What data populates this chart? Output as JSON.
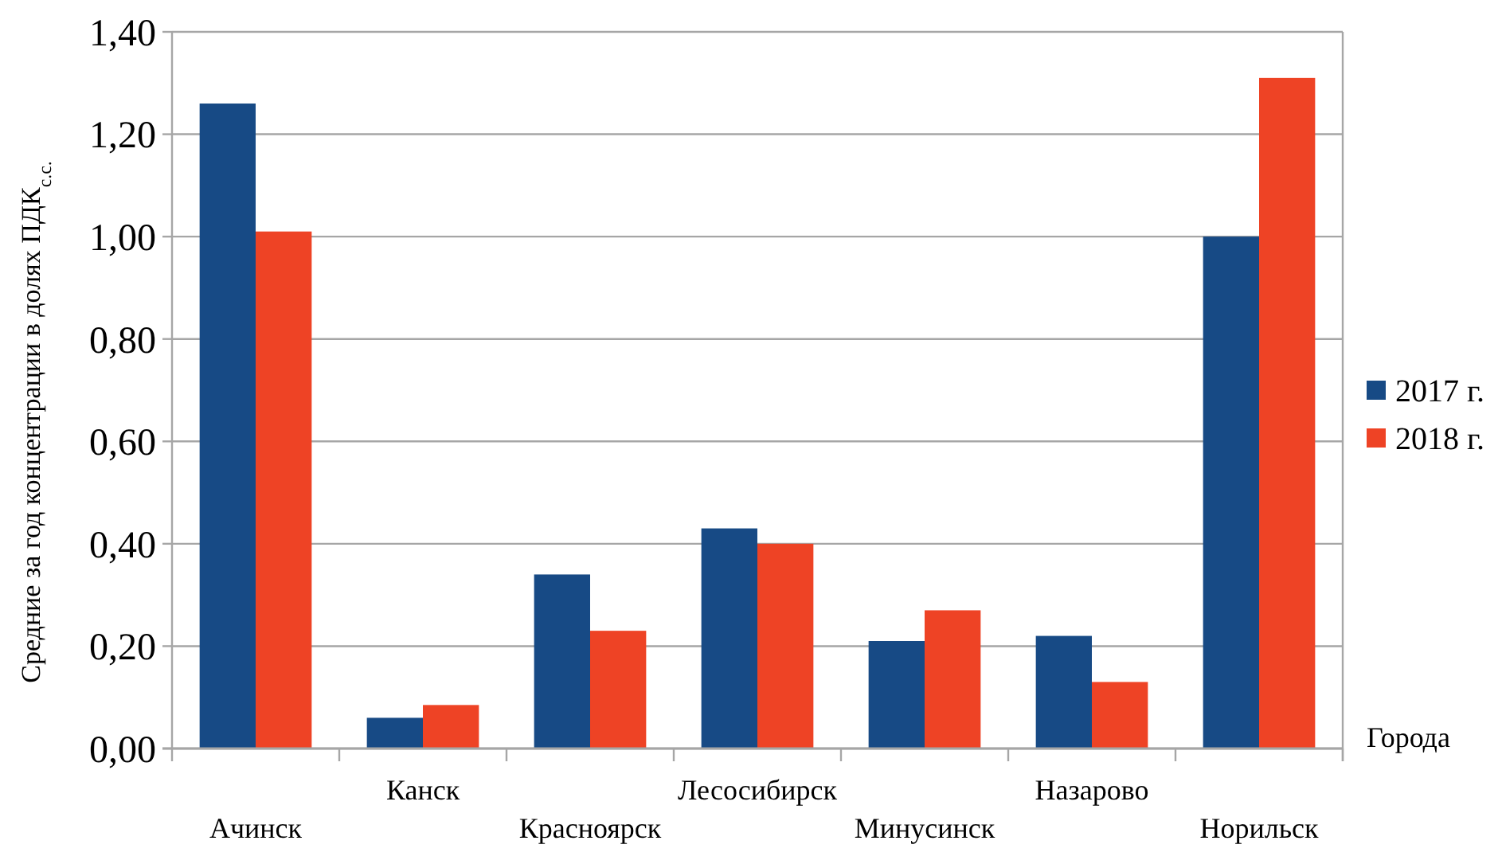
{
  "chart_data": {
    "type": "bar",
    "categories": [
      "Ачинск",
      "Канск",
      "Красноярск",
      "Лесосибирск",
      "Минусинск",
      "Назарово",
      "Норильск"
    ],
    "series": [
      {
        "name": "2017 г.",
        "color": "#174a85",
        "values": [
          1.26,
          0.06,
          0.34,
          0.43,
          0.21,
          0.22,
          1.0
        ]
      },
      {
        "name": "2018 г.",
        "color": "#ee4325",
        "values": [
          1.01,
          0.085,
          0.23,
          0.4,
          0.27,
          0.13,
          1.31
        ]
      }
    ],
    "xlabel": "Города",
    "ylabel": "Средние за год концентрации в долях ПДК$_{с.с.}$",
    "ylim": [
      0,
      1.4
    ],
    "yticks": [
      {
        "value": 0,
        "label": "0,00"
      },
      {
        "value": 0.2,
        "label": "0,20"
      },
      {
        "value": 0.4,
        "label": "0,40"
      },
      {
        "value": 0.6,
        "label": "0,60"
      },
      {
        "value": 0.8,
        "label": "0,80"
      },
      {
        "value": 1.0,
        "label": "1,00"
      },
      {
        "value": 1.2,
        "label": "1,20"
      },
      {
        "value": 1.4,
        "label": "1,40"
      }
    ],
    "grid": "y",
    "legend": "right"
  }
}
